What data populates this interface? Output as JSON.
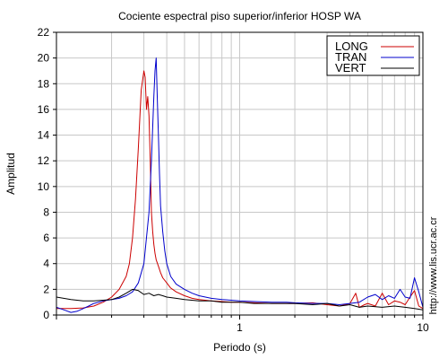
{
  "chart_data": {
    "type": "line",
    "title": "Cociente espectral piso superior/inferior  HOSP WA",
    "xlabel": "Periodo (s)",
    "ylabel": "Amplitud",
    "xscale": "log",
    "xlim": [
      0.1,
      10
    ],
    "ylim": [
      0,
      22
    ],
    "x_ticks": [
      1,
      10
    ],
    "x_tick_labels": [
      "1",
      "10"
    ],
    "y_ticks": [
      0,
      2,
      4,
      6,
      8,
      10,
      12,
      14,
      16,
      18,
      20,
      22
    ],
    "y_tick_labels": [
      "0",
      "2",
      "4",
      "6",
      "8",
      "10",
      "12",
      "14",
      "16",
      "18",
      "20",
      "22"
    ],
    "grid": true,
    "legend_position": "top-right",
    "side_note": "http://www.lis.ucr.ac.cr",
    "series": [
      {
        "name": "LONG",
        "color": "#cc0000",
        "x": [
          0.1,
          0.12,
          0.14,
          0.16,
          0.18,
          0.2,
          0.22,
          0.24,
          0.25,
          0.26,
          0.27,
          0.28,
          0.29,
          0.3,
          0.305,
          0.31,
          0.315,
          0.32,
          0.325,
          0.33,
          0.335,
          0.34,
          0.345,
          0.35,
          0.36,
          0.37,
          0.38,
          0.4,
          0.42,
          0.45,
          0.5,
          0.55,
          0.6,
          0.7,
          0.8,
          0.9,
          1.0,
          1.2,
          1.5,
          2.0,
          2.5,
          3.0,
          3.5,
          4.0,
          4.3,
          4.5,
          4.8,
          5.0,
          5.5,
          6.0,
          6.5,
          7.0,
          7.5,
          8.0,
          8.5,
          9.0,
          9.5,
          10.0
        ],
        "y": [
          0.5,
          0.5,
          0.55,
          0.7,
          1.0,
          1.4,
          2.0,
          3.0,
          4.0,
          6.0,
          9.0,
          13.0,
          17.5,
          19.0,
          18.5,
          16.0,
          17.0,
          15.5,
          12.0,
          8.0,
          6.5,
          5.5,
          4.8,
          4.3,
          3.8,
          3.3,
          2.9,
          2.5,
          2.1,
          1.8,
          1.5,
          1.3,
          1.2,
          1.1,
          1.05,
          1.0,
          1.0,
          0.95,
          0.9,
          0.9,
          0.95,
          0.8,
          0.7,
          0.9,
          1.7,
          0.6,
          0.8,
          0.9,
          0.7,
          1.7,
          0.8,
          1.1,
          1.0,
          0.8,
          1.4,
          1.9,
          0.7,
          0.5
        ]
      },
      {
        "name": "TRAN",
        "color": "#0000cc",
        "x": [
          0.1,
          0.11,
          0.12,
          0.13,
          0.14,
          0.15,
          0.16,
          0.18,
          0.2,
          0.22,
          0.24,
          0.26,
          0.28,
          0.3,
          0.32,
          0.33,
          0.34,
          0.345,
          0.35,
          0.355,
          0.36,
          0.365,
          0.37,
          0.38,
          0.39,
          0.4,
          0.42,
          0.45,
          0.5,
          0.55,
          0.6,
          0.7,
          0.8,
          0.9,
          1.0,
          1.2,
          1.5,
          1.8,
          2.0,
          2.5,
          3.0,
          3.5,
          4.0,
          4.5,
          5.0,
          5.5,
          6.0,
          6.5,
          7.0,
          7.5,
          8.0,
          8.5,
          9.0,
          9.5,
          10.0
        ],
        "y": [
          0.6,
          0.4,
          0.2,
          0.3,
          0.5,
          0.7,
          0.9,
          1.1,
          1.2,
          1.3,
          1.5,
          1.8,
          2.5,
          4.0,
          8.0,
          12.0,
          17.0,
          19.0,
          20.0,
          17.0,
          14.0,
          11.0,
          8.5,
          6.5,
          5.0,
          4.0,
          3.0,
          2.4,
          2.0,
          1.7,
          1.5,
          1.3,
          1.2,
          1.15,
          1.1,
          1.05,
          1.0,
          1.0,
          0.95,
          0.9,
          0.9,
          0.8,
          0.9,
          1.0,
          1.4,
          1.6,
          1.2,
          1.5,
          1.3,
          2.0,
          1.4,
          1.3,
          2.9,
          1.8,
          0.6
        ]
      },
      {
        "name": "VERT",
        "color": "#000000",
        "x": [
          0.1,
          0.12,
          0.14,
          0.16,
          0.18,
          0.2,
          0.22,
          0.24,
          0.26,
          0.28,
          0.3,
          0.32,
          0.34,
          0.36,
          0.38,
          0.4,
          0.45,
          0.5,
          0.6,
          0.7,
          0.8,
          1.0,
          1.2,
          1.5,
          2.0,
          2.5,
          3.0,
          3.5,
          4.0,
          4.5,
          5.0,
          6.0,
          7.0,
          8.0,
          9.0,
          10.0
        ],
        "y": [
          1.4,
          1.2,
          1.1,
          1.1,
          1.15,
          1.2,
          1.4,
          1.7,
          2.0,
          1.9,
          1.6,
          1.7,
          1.5,
          1.6,
          1.5,
          1.4,
          1.3,
          1.2,
          1.1,
          1.1,
          1.0,
          1.0,
          0.9,
          0.9,
          0.9,
          0.8,
          0.9,
          0.7,
          0.8,
          0.6,
          0.7,
          0.6,
          0.7,
          0.6,
          0.5,
          0.4
        ]
      }
    ]
  }
}
